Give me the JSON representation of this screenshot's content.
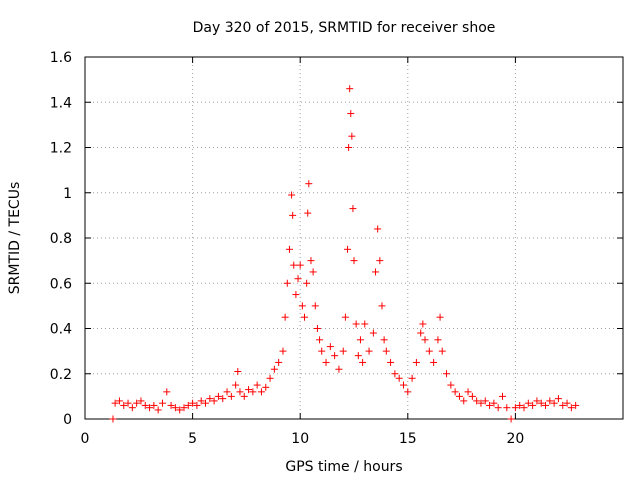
{
  "chart_data": {
    "type": "scatter",
    "title": "Day 320 of 2015, SRMTID for receiver shoe",
    "xlabel": "GPS time / hours",
    "ylabel": "SRMTID / TECUs",
    "xlim": [
      0,
      25
    ],
    "ylim": [
      0,
      1.6
    ],
    "x_ticks": [
      0,
      5,
      10,
      15,
      20
    ],
    "x_tick_labels": [
      "0",
      "5",
      "10",
      "15",
      "20"
    ],
    "y_ticks": [
      0,
      0.2,
      0.4,
      0.6,
      0.8,
      1.0,
      1.2,
      1.4,
      1.6
    ],
    "y_tick_labels": [
      "0",
      "0.2",
      "0.4",
      "0.6",
      "0.8",
      "1",
      "1.2",
      "1.4",
      "1.6"
    ],
    "grid": true,
    "marker": "+",
    "marker_color": "#ff0000",
    "series": [
      {
        "name": "SRMTID",
        "points": [
          [
            1.3,
            0.0
          ],
          [
            1.4,
            0.07
          ],
          [
            1.6,
            0.08
          ],
          [
            1.8,
            0.06
          ],
          [
            2.0,
            0.07
          ],
          [
            2.2,
            0.05
          ],
          [
            2.4,
            0.07
          ],
          [
            2.6,
            0.08
          ],
          [
            2.8,
            0.06
          ],
          [
            3.0,
            0.05
          ],
          [
            3.2,
            0.06
          ],
          [
            3.4,
            0.04
          ],
          [
            3.6,
            0.07
          ],
          [
            3.8,
            0.12
          ],
          [
            4.0,
            0.06
          ],
          [
            4.2,
            0.05
          ],
          [
            4.4,
            0.04
          ],
          [
            4.6,
            0.05
          ],
          [
            4.8,
            0.06
          ],
          [
            5.0,
            0.07
          ],
          [
            5.2,
            0.06
          ],
          [
            5.4,
            0.08
          ],
          [
            5.6,
            0.07
          ],
          [
            5.8,
            0.09
          ],
          [
            6.0,
            0.08
          ],
          [
            6.2,
            0.1
          ],
          [
            6.4,
            0.09
          ],
          [
            6.6,
            0.12
          ],
          [
            6.8,
            0.1
          ],
          [
            7.0,
            0.15
          ],
          [
            7.1,
            0.21
          ],
          [
            7.2,
            0.12
          ],
          [
            7.4,
            0.1
          ],
          [
            7.6,
            0.13
          ],
          [
            7.8,
            0.12
          ],
          [
            8.0,
            0.15
          ],
          [
            8.2,
            0.12
          ],
          [
            8.4,
            0.14
          ],
          [
            8.6,
            0.18
          ],
          [
            8.8,
            0.22
          ],
          [
            9.0,
            0.25
          ],
          [
            9.2,
            0.3
          ],
          [
            9.3,
            0.45
          ],
          [
            9.4,
            0.6
          ],
          [
            9.5,
            0.75
          ],
          [
            9.6,
            0.99
          ],
          [
            9.65,
            0.9
          ],
          [
            9.7,
            0.68
          ],
          [
            9.8,
            0.55
          ],
          [
            9.9,
            0.62
          ],
          [
            10.0,
            0.68
          ],
          [
            10.1,
            0.5
          ],
          [
            10.2,
            0.45
          ],
          [
            10.3,
            0.6
          ],
          [
            10.35,
            0.91
          ],
          [
            10.4,
            1.04
          ],
          [
            10.5,
            0.7
          ],
          [
            10.6,
            0.65
          ],
          [
            10.7,
            0.5
          ],
          [
            10.8,
            0.4
          ],
          [
            10.9,
            0.35
          ],
          [
            11.0,
            0.3
          ],
          [
            11.2,
            0.25
          ],
          [
            11.4,
            0.32
          ],
          [
            11.6,
            0.28
          ],
          [
            11.8,
            0.22
          ],
          [
            12.0,
            0.3
          ],
          [
            12.1,
            0.45
          ],
          [
            12.2,
            0.75
          ],
          [
            12.25,
            1.2
          ],
          [
            12.3,
            1.46
          ],
          [
            12.35,
            1.35
          ],
          [
            12.4,
            1.25
          ],
          [
            12.45,
            0.93
          ],
          [
            12.5,
            0.7
          ],
          [
            12.6,
            0.42
          ],
          [
            12.7,
            0.28
          ],
          [
            12.8,
            0.35
          ],
          [
            12.9,
            0.25
          ],
          [
            13.0,
            0.42
          ],
          [
            13.2,
            0.3
          ],
          [
            13.4,
            0.38
          ],
          [
            13.5,
            0.65
          ],
          [
            13.6,
            0.84
          ],
          [
            13.7,
            0.7
          ],
          [
            13.8,
            0.5
          ],
          [
            13.9,
            0.35
          ],
          [
            14.0,
            0.3
          ],
          [
            14.2,
            0.25
          ],
          [
            14.4,
            0.2
          ],
          [
            14.6,
            0.18
          ],
          [
            14.8,
            0.15
          ],
          [
            15.0,
            0.12
          ],
          [
            15.2,
            0.18
          ],
          [
            15.4,
            0.25
          ],
          [
            15.6,
            0.38
          ],
          [
            15.7,
            0.42
          ],
          [
            15.8,
            0.35
          ],
          [
            16.0,
            0.3
          ],
          [
            16.2,
            0.25
          ],
          [
            16.4,
            0.35
          ],
          [
            16.5,
            0.45
          ],
          [
            16.6,
            0.3
          ],
          [
            16.8,
            0.2
          ],
          [
            17.0,
            0.15
          ],
          [
            17.2,
            0.12
          ],
          [
            17.4,
            0.1
          ],
          [
            17.6,
            0.08
          ],
          [
            17.8,
            0.12
          ],
          [
            18.0,
            0.1
          ],
          [
            18.2,
            0.08
          ],
          [
            18.4,
            0.07
          ],
          [
            18.6,
            0.08
          ],
          [
            18.8,
            0.06
          ],
          [
            19.0,
            0.07
          ],
          [
            19.2,
            0.05
          ],
          [
            19.4,
            0.1
          ],
          [
            19.6,
            0.05
          ],
          [
            19.8,
            0.0
          ],
          [
            20.0,
            0.05
          ],
          [
            20.2,
            0.06
          ],
          [
            20.4,
            0.05
          ],
          [
            20.6,
            0.07
          ],
          [
            20.8,
            0.06
          ],
          [
            21.0,
            0.08
          ],
          [
            21.2,
            0.07
          ],
          [
            21.4,
            0.06
          ],
          [
            21.6,
            0.08
          ],
          [
            21.8,
            0.07
          ],
          [
            22.0,
            0.09
          ],
          [
            22.2,
            0.06
          ],
          [
            22.4,
            0.07
          ],
          [
            22.6,
            0.05
          ],
          [
            22.8,
            0.06
          ]
        ]
      }
    ]
  }
}
